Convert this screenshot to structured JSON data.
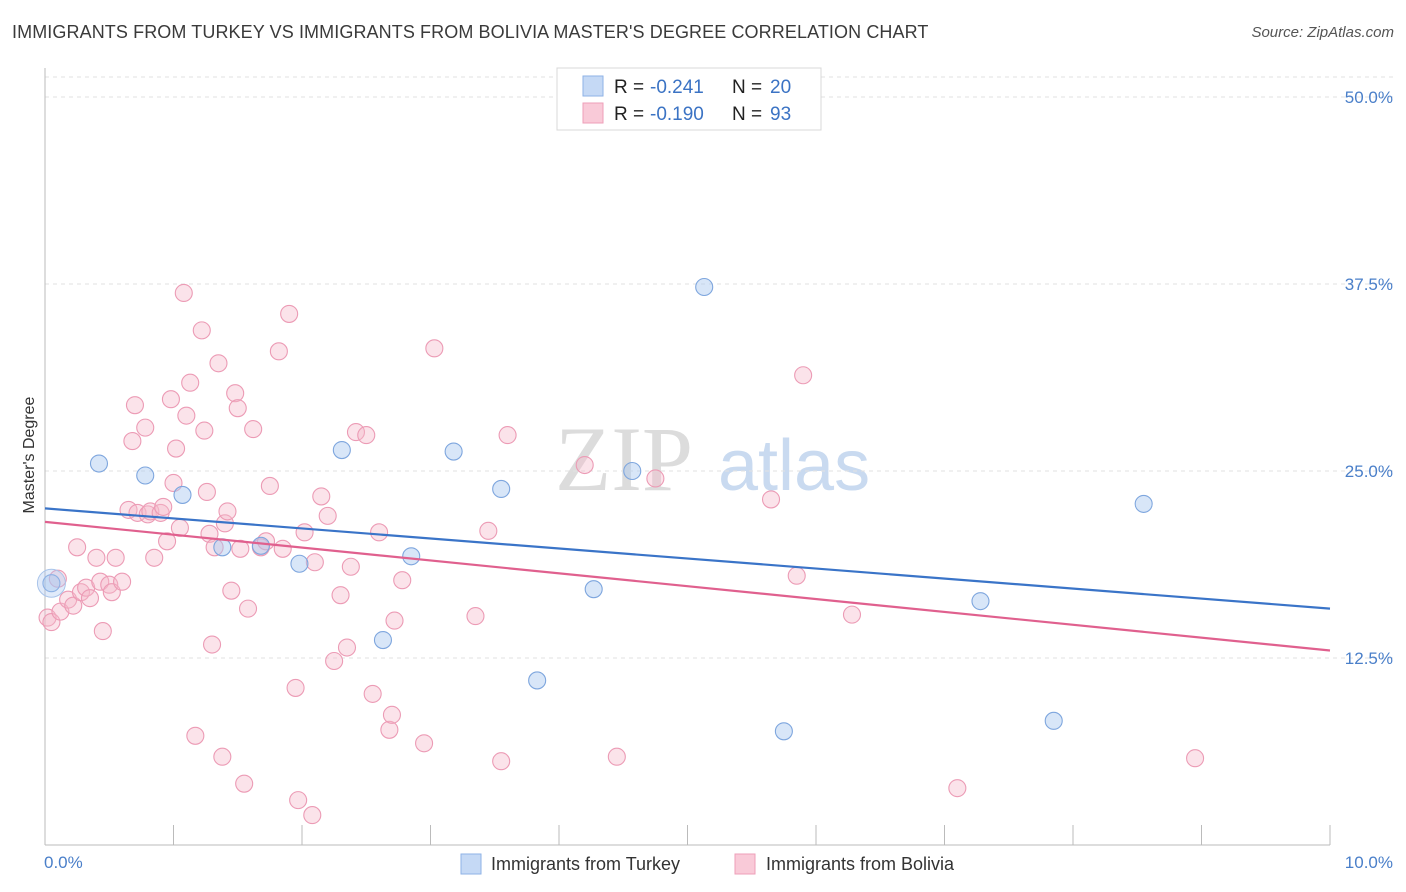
{
  "chart_data": {
    "type": "scatter",
    "title": "IMMIGRANTS FROM TURKEY VS IMMIGRANTS FROM BOLIVIA MASTER'S DEGREE CORRELATION CHART",
    "source": "Source: ZipAtlas.com",
    "ylabel": "Master's Degree",
    "xlim": [
      0,
      10
    ],
    "ylim": [
      0,
      50
    ],
    "y_ticks": [
      {
        "value": 12.5,
        "label": "12.5%"
      },
      {
        "value": 25,
        "label": "25.0%"
      },
      {
        "value": 37.5,
        "label": "37.5%"
      },
      {
        "value": 50,
        "label": "50.0%"
      }
    ],
    "x_tick_labels": {
      "min": "0.0%",
      "max": "10.0%"
    },
    "watermark": {
      "zip": "ZIP",
      "atlas": "atlas"
    },
    "legend": {
      "r_label": "R =",
      "n_label": "N =",
      "entries": [
        {
          "r": "-0.241",
          "n": "20"
        },
        {
          "r": "-0.190",
          "n": "93"
        }
      ]
    },
    "series": [
      {
        "name": "Immigrants from Turkey",
        "color": "#a9c7f0",
        "line_color": "#3a74c8",
        "trend": {
          "x0": 0,
          "y0": 22.5,
          "x1": 10,
          "y1": 15.8
        },
        "points": [
          [
            0.05,
            17.5
          ],
          [
            0.42,
            25.5
          ],
          [
            0.78,
            24.7
          ],
          [
            1.07,
            23.4
          ],
          [
            1.38,
            19.9
          ],
          [
            1.68,
            20.0
          ],
          [
            1.98,
            18.8
          ],
          [
            2.31,
            26.4
          ],
          [
            2.63,
            13.7
          ],
          [
            2.85,
            19.3
          ],
          [
            3.18,
            26.3
          ],
          [
            3.55,
            23.8
          ],
          [
            3.83,
            11.0
          ],
          [
            4.27,
            17.1
          ],
          [
            4.57,
            25.0
          ],
          [
            5.13,
            37.3
          ],
          [
            5.75,
            7.6
          ],
          [
            7.28,
            16.3
          ],
          [
            7.85,
            8.3
          ],
          [
            8.55,
            22.8
          ]
        ]
      },
      {
        "name": "Immigrants from Bolivia",
        "color": "#f6b8cb",
        "line_color": "#e0608e",
        "trend": {
          "x0": 0,
          "y0": 21.6,
          "x1": 10,
          "y1": 13.0
        },
        "points": [
          [
            0.02,
            15.2
          ],
          [
            0.05,
            14.9
          ],
          [
            0.1,
            17.8
          ],
          [
            0.12,
            15.6
          ],
          [
            0.18,
            16.4
          ],
          [
            0.22,
            16.0
          ],
          [
            0.25,
            19.9
          ],
          [
            0.28,
            16.9
          ],
          [
            0.32,
            17.2
          ],
          [
            0.35,
            16.5
          ],
          [
            0.4,
            19.2
          ],
          [
            0.43,
            17.6
          ],
          [
            0.45,
            14.3
          ],
          [
            0.5,
            17.4
          ],
          [
            0.52,
            16.9
          ],
          [
            0.55,
            19.2
          ],
          [
            0.6,
            17.6
          ],
          [
            0.65,
            22.4
          ],
          [
            0.68,
            27.0
          ],
          [
            0.7,
            29.4
          ],
          [
            0.72,
            22.2
          ],
          [
            0.78,
            27.9
          ],
          [
            0.8,
            22.1
          ],
          [
            0.82,
            22.3
          ],
          [
            0.85,
            19.2
          ],
          [
            0.9,
            22.2
          ],
          [
            0.92,
            22.6
          ],
          [
            0.95,
            20.3
          ],
          [
            0.98,
            29.8
          ],
          [
            1.0,
            24.2
          ],
          [
            1.02,
            26.5
          ],
          [
            1.05,
            21.2
          ],
          [
            1.08,
            36.9
          ],
          [
            1.1,
            28.7
          ],
          [
            1.13,
            30.9
          ],
          [
            1.17,
            7.3
          ],
          [
            1.22,
            34.4
          ],
          [
            1.24,
            27.7
          ],
          [
            1.26,
            23.6
          ],
          [
            1.28,
            20.8
          ],
          [
            1.3,
            13.4
          ],
          [
            1.32,
            19.9
          ],
          [
            1.35,
            32.2
          ],
          [
            1.38,
            5.9
          ],
          [
            1.4,
            21.5
          ],
          [
            1.42,
            22.3
          ],
          [
            1.45,
            17.0
          ],
          [
            1.48,
            30.2
          ],
          [
            1.5,
            29.2
          ],
          [
            1.52,
            19.8
          ],
          [
            1.55,
            4.1
          ],
          [
            1.58,
            15.8
          ],
          [
            1.62,
            27.8
          ],
          [
            1.68,
            19.9
          ],
          [
            1.72,
            20.3
          ],
          [
            1.75,
            24.0
          ],
          [
            1.82,
            33.0
          ],
          [
            1.85,
            19.8
          ],
          [
            1.9,
            35.5
          ],
          [
            1.95,
            10.5
          ],
          [
            1.97,
            3.0
          ],
          [
            2.02,
            20.9
          ],
          [
            2.08,
            2.0
          ],
          [
            2.1,
            18.9
          ],
          [
            2.15,
            23.3
          ],
          [
            2.2,
            22.0
          ],
          [
            2.25,
            12.3
          ],
          [
            2.3,
            16.7
          ],
          [
            2.35,
            13.2
          ],
          [
            2.38,
            18.6
          ],
          [
            2.42,
            27.6
          ],
          [
            2.5,
            27.4
          ],
          [
            2.55,
            10.1
          ],
          [
            2.6,
            20.9
          ],
          [
            2.68,
            7.7
          ],
          [
            2.7,
            8.7
          ],
          [
            2.72,
            15.0
          ],
          [
            2.78,
            17.7
          ],
          [
            2.95,
            6.8
          ],
          [
            3.03,
            33.2
          ],
          [
            3.35,
            15.3
          ],
          [
            3.45,
            21.0
          ],
          [
            3.55,
            5.6
          ],
          [
            3.6,
            27.4
          ],
          [
            4.2,
            25.4
          ],
          [
            4.45,
            5.9
          ],
          [
            4.75,
            24.5
          ],
          [
            5.65,
            23.1
          ],
          [
            5.85,
            18.0
          ],
          [
            5.9,
            31.4
          ],
          [
            6.28,
            15.4
          ],
          [
            7.1,
            3.8
          ],
          [
            8.95,
            5.8
          ]
        ]
      }
    ]
  }
}
